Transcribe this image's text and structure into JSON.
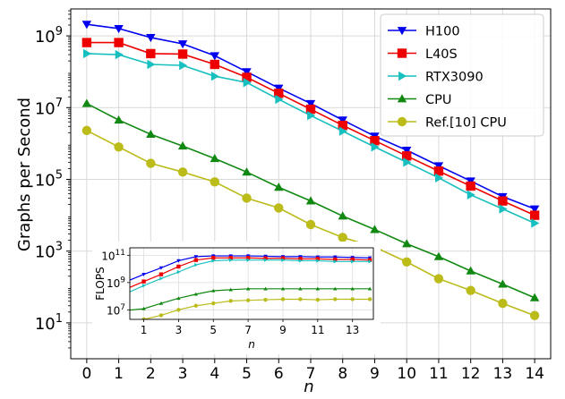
{
  "chart_data": {
    "type": "line",
    "xlabel": "n",
    "ylabel": "Graphs per Second",
    "yscale": "log",
    "xlim": [
      -0.5,
      14.5
    ],
    "ylim_log10": [
      0,
      9.75
    ],
    "x": [
      0,
      1,
      2,
      3,
      4,
      5,
      6,
      7,
      8,
      9,
      10,
      11,
      12,
      13,
      14
    ],
    "x_tick_labels": [
      "0",
      "1",
      "2",
      "3",
      "4",
      "5",
      "6",
      "7",
      "8",
      "9",
      "10",
      "11",
      "12",
      "13",
      "14"
    ],
    "y_tick_exponents": [
      1,
      3,
      5,
      7,
      9
    ],
    "y_tick_base": "10",
    "grid": true,
    "legend_position": "top-right",
    "series": [
      {
        "name": "H100",
        "color": "#0000ee",
        "marker": "triangle-down",
        "values": [
          2100000000.0,
          1600000000.0,
          900000000.0,
          600000000.0,
          280000000.0,
          100000000.0,
          35000000.0,
          13000000.0,
          4500000.0,
          1600000.0,
          650000.0,
          240000.0,
          90000.0,
          33000.0,
          15000.0
        ]
      },
      {
        "name": "L40S",
        "color": "#ee0000",
        "marker": "square",
        "values": [
          650000000.0,
          650000000.0,
          320000000.0,
          310000000.0,
          160000000.0,
          70000000.0,
          25000000.0,
          9000000.0,
          3200000.0,
          1200000.0,
          450000.0,
          170000.0,
          65000.0,
          25000.0,
          10000.0
        ]
      },
      {
        "name": "RTX3090",
        "color": "#17bfbf",
        "marker": "triangle-right",
        "values": [
          320000000.0,
          300000000.0,
          160000000.0,
          150000000.0,
          75000000.0,
          50000000.0,
          17000000.0,
          6000000.0,
          2200000.0,
          800000.0,
          300000.0,
          110000.0,
          37000.0,
          15000.0,
          6000.0
        ]
      },
      {
        "name": "CPU",
        "color": "#118811",
        "marker": "triangle-up",
        "values": [
          13000000.0,
          4500000.0,
          1800000.0,
          850000.0,
          380000.0,
          160000.0,
          60000.0,
          25000.0,
          9500.0,
          4000.0,
          1600.0,
          700.0,
          280.0,
          120.0,
          50.0
        ]
      },
      {
        "name": "Ref.[10] CPU",
        "color": "#bbbb1a",
        "marker": "circle",
        "values": [
          2300000.0,
          800000.0,
          280000.0,
          160000.0,
          85000.0,
          30000.0,
          16000.0,
          5500.0,
          2400.0,
          1300.0,
          500.0,
          170.0,
          80.0,
          35.0,
          16.0
        ]
      }
    ],
    "inset": {
      "type": "line",
      "xlabel": "n",
      "ylabel": "FLOPS",
      "yscale": "log",
      "xlim": [
        0.2,
        14.2
      ],
      "ylim_log10": [
        6.3,
        11.55
      ],
      "x": [
        0,
        1,
        2,
        3,
        4,
        5,
        6,
        7,
        8,
        9,
        10,
        11,
        12,
        13,
        14
      ],
      "x_tick_values": [
        1,
        3,
        5,
        7,
        9,
        11,
        13
      ],
      "x_tick_labels": [
        "1",
        "3",
        "5",
        "7",
        "9",
        "11",
        "13"
      ],
      "y_tick_exponents": [
        7,
        9,
        11
      ],
      "y_tick_base": "10",
      "grid": true,
      "series": [
        {
          "name": "H100",
          "color": "#0000ee",
          "values": [
            1200000000.0,
            4000000000.0,
            12000000000.0,
            40000000000.0,
            80000000000.0,
            90000000000.0,
            90000000000.0,
            90000000000.0,
            85000000000.0,
            80000000000.0,
            80000000000.0,
            75000000000.0,
            75000000000.0,
            70000000000.0,
            65000000000.0
          ]
        },
        {
          "name": "L40S",
          "color": "#ee0000",
          "values": [
            350000000.0,
            1200000000.0,
            4000000000.0,
            15000000000.0,
            45000000000.0,
            65000000000.0,
            65000000000.0,
            65000000000.0,
            60000000000.0,
            60000000000.0,
            55000000000.0,
            55000000000.0,
            50000000000.0,
            50000000000.0,
            45000000000.0
          ]
        },
        {
          "name": "RTX3090",
          "color": "#17bfbf",
          "values": [
            160000000.0,
            600000000.0,
            2000000000.0,
            6000000000.0,
            20000000000.0,
            40000000000.0,
            45000000000.0,
            45000000000.0,
            45000000000.0,
            45000000000.0,
            40000000000.0,
            40000000000.0,
            35000000000.0,
            35000000000.0,
            35000000000.0
          ]
        },
        {
          "name": "CPU",
          "color": "#118811",
          "values": [
            9000000.0,
            12000000.0,
            30000000.0,
            70000000.0,
            140000000.0,
            250000000.0,
            300000000.0,
            350000000.0,
            350000000.0,
            350000000.0,
            350000000.0,
            350000000.0,
            350000000.0,
            350000000.0,
            350000000.0
          ]
        },
        {
          "name": "Ref.[10] CPU",
          "color": "#bbbb1a",
          "values": [
            1500000.0,
            2000000.0,
            4000000.0,
            10000000.0,
            20000000.0,
            30000000.0,
            45000000.0,
            50000000.0,
            55000000.0,
            60000000.0,
            60000000.0,
            55000000.0,
            60000000.0,
            60000000.0,
            60000000.0
          ]
        }
      ]
    }
  }
}
